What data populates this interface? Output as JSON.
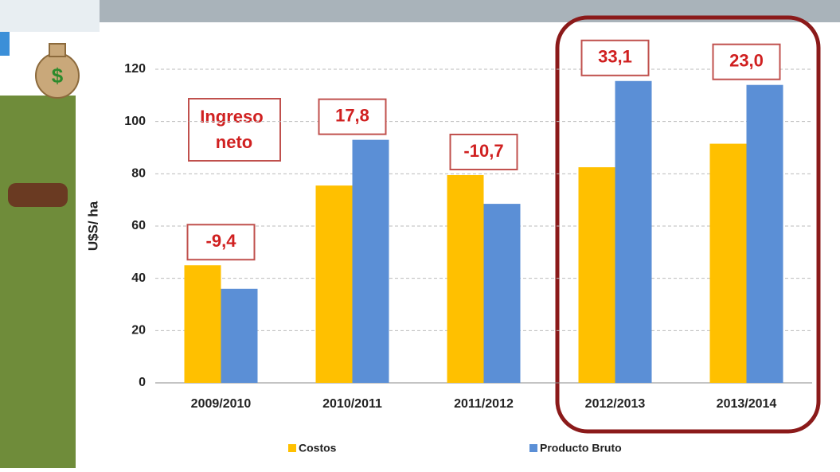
{
  "chart_data": {
    "type": "bar",
    "y_label": "U$S/ ha",
    "categories": [
      "2009/2010",
      "2010/2011",
      "2011/2012",
      "2012/2013",
      "2013/2014"
    ],
    "series": [
      {
        "name": "Costos",
        "color": "#ffc000",
        "values": [
          45,
          75.5,
          79.5,
          82.5,
          91.5
        ]
      },
      {
        "name": "Producto Bruto",
        "color": "#5b8fd6",
        "values": [
          36,
          93,
          68.5,
          115.5,
          114
        ]
      }
    ],
    "net_income_title": "Ingreso neto",
    "net_income_labels": [
      "-9,4",
      "17,8",
      "-10,7",
      "33,1",
      "23,0"
    ],
    "ylim": [
      0,
      120
    ],
    "yticks": [
      0,
      20,
      40,
      60,
      80,
      100,
      120
    ],
    "grid": true
  }
}
